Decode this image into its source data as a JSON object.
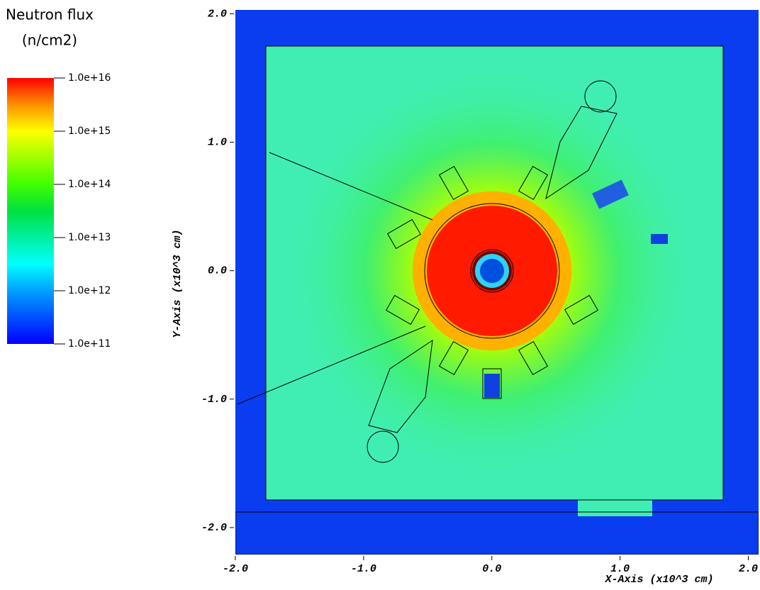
{
  "chart_data": {
    "type": "heatmap",
    "colorbar_title": [
      "Neutron flux",
      "(n/cm2)"
    ],
    "colorbar_lim": [
      100000000000.0,
      1e+16
    ],
    "colorbar_ticks": [
      {
        "value": 1e+16,
        "label": "1.0e+16"
      },
      {
        "value": 1000000000000000.0,
        "label": "1.0e+15"
      },
      {
        "value": 100000000000000.0,
        "label": "1.0e+14"
      },
      {
        "value": 10000000000000.0,
        "label": "1.0e+13"
      },
      {
        "value": 1000000000000.0,
        "label": "1.0e+12"
      },
      {
        "value": 100000000000.0,
        "label": "1.0e+11"
      }
    ],
    "colorbar_log": true,
    "x_label": "X-Axis (x10^3 cm)",
    "y_label": "Y-Axis (x10^3 cm)",
    "xlim": [
      -2.0,
      2.08
    ],
    "ylim": [
      -2.21,
      2.03
    ],
    "xticks": [
      {
        "value": -2,
        "label": "-2.0"
      },
      {
        "value": -1,
        "label": "-1.0"
      },
      {
        "value": 0,
        "label": "0.0"
      },
      {
        "value": 1,
        "label": "1.0"
      },
      {
        "value": 2,
        "label": "2.0"
      }
    ],
    "yticks": [
      {
        "value": 2,
        "label": "2.0"
      },
      {
        "value": 1,
        "label": "1.0"
      },
      {
        "value": 0,
        "label": "0.0"
      },
      {
        "value": -1,
        "label": "-1.0"
      },
      {
        "value": -2,
        "label": "-2.0"
      }
    ]
  }
}
